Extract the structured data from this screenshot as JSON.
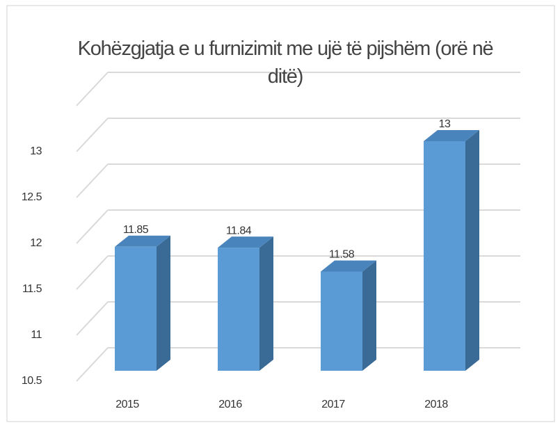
{
  "chart_data": {
    "type": "bar3d",
    "title": "Kohëzgjatja e u furnizimit me ujë të pijshëm (orë në ditë)",
    "categories": [
      "2015",
      "2016",
      "2017",
      "2018"
    ],
    "values": [
      11.85,
      11.84,
      11.58,
      13
    ],
    "color": "#5b9bd5",
    "ylim": [
      10.5,
      13.5
    ],
    "yticks": [
      10.5,
      11,
      11.5,
      12,
      12.5,
      13
    ],
    "grid": true
  }
}
